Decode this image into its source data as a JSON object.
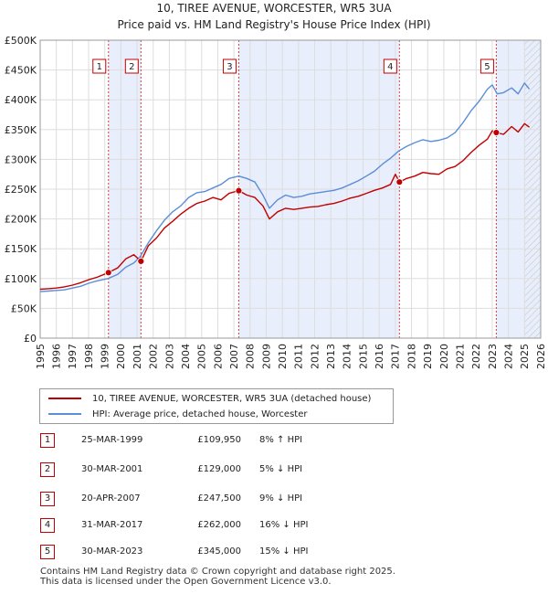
{
  "chart_data": {
    "type": "line",
    "title": "10, TIREE AVENUE, WORCESTER, WR5 3UA",
    "subtitle": "Price paid vs. HM Land Registry's House Price Index (HPI)",
    "xlabel": "",
    "ylabel": "",
    "xlim": [
      1995,
      2026
    ],
    "ylim": [
      0,
      500000
    ],
    "grid": true,
    "y_ticks": [
      {
        "value": 0,
        "label": "£0"
      },
      {
        "value": 50000,
        "label": "£50K"
      },
      {
        "value": 100000,
        "label": "£100K"
      },
      {
        "value": 150000,
        "label": "£150K"
      },
      {
        "value": 200000,
        "label": "£200K"
      },
      {
        "value": 250000,
        "label": "£250K"
      },
      {
        "value": 300000,
        "label": "£300K"
      },
      {
        "value": 350000,
        "label": "£350K"
      },
      {
        "value": 400000,
        "label": "£400K"
      },
      {
        "value": 450000,
        "label": "£450K"
      },
      {
        "value": 500000,
        "label": "£500K"
      }
    ],
    "x_ticks": [
      "1995",
      "1996",
      "1997",
      "1998",
      "1999",
      "2000",
      "2001",
      "2002",
      "2003",
      "2004",
      "2005",
      "2006",
      "2007",
      "2008",
      "2009",
      "2010",
      "2011",
      "2012",
      "2013",
      "2014",
      "2015",
      "2016",
      "2017",
      "2018",
      "2019",
      "2020",
      "2021",
      "2022",
      "2023",
      "2024",
      "2025",
      "2026"
    ],
    "series": [
      {
        "name": "10, TIREE AVENUE, WORCESTER, WR5 3UA (detached house)",
        "color": "#c00000",
        "x": [
          1995.0,
          1995.5,
          1996.0,
          1996.5,
          1997.0,
          1997.5,
          1998.0,
          1998.5,
          1999.23,
          1999.8,
          2000.3,
          2000.8,
          2001.24,
          2001.7,
          2002.2,
          2002.7,
          2003.2,
          2003.7,
          2004.2,
          2004.7,
          2005.2,
          2005.7,
          2006.2,
          2006.7,
          2007.3,
          2007.8,
          2008.3,
          2008.8,
          2009.2,
          2009.7,
          2010.2,
          2010.7,
          2011.2,
          2011.7,
          2012.2,
          2012.7,
          2013.2,
          2013.7,
          2014.2,
          2014.7,
          2015.2,
          2015.7,
          2016.2,
          2016.7,
          2017.0,
          2017.25,
          2017.7,
          2018.2,
          2018.7,
          2019.2,
          2019.7,
          2020.2,
          2020.7,
          2021.2,
          2021.7,
          2022.2,
          2022.7,
          2023.0,
          2023.25,
          2023.7,
          2024.2,
          2024.6,
          2025.0,
          2025.3
        ],
        "y": [
          82000,
          83000,
          84000,
          86000,
          89000,
          93000,
          98000,
          102000,
          109950,
          118000,
          133000,
          140000,
          129000,
          155000,
          168000,
          185000,
          196000,
          208000,
          218000,
          226000,
          230000,
          236000,
          232000,
          243000,
          247500,
          240000,
          236000,
          222000,
          200000,
          212000,
          218000,
          216000,
          218000,
          220000,
          221000,
          224000,
          226000,
          230000,
          235000,
          238000,
          243000,
          248000,
          252000,
          258000,
          275000,
          262000,
          268000,
          272000,
          278000,
          276000,
          275000,
          284000,
          288000,
          298000,
          312000,
          324000,
          334000,
          348000,
          345000,
          342000,
          355000,
          346000,
          360000,
          354000
        ]
      },
      {
        "name": "HPI: Average price, detached house, Worcester",
        "color": "#5b8ed6",
        "x": [
          1995.0,
          1995.5,
          1996.0,
          1996.5,
          1997.0,
          1997.5,
          1998.0,
          1998.5,
          1999.2,
          1999.8,
          2000.3,
          2000.8,
          2001.2,
          2001.7,
          2002.2,
          2002.7,
          2003.2,
          2003.7,
          2004.2,
          2004.7,
          2005.2,
          2005.7,
          2006.2,
          2006.7,
          2007.3,
          2007.8,
          2008.3,
          2008.8,
          2009.2,
          2009.7,
          2010.2,
          2010.7,
          2011.2,
          2011.7,
          2012.2,
          2012.7,
          2013.2,
          2013.7,
          2014.2,
          2014.7,
          2015.2,
          2015.7,
          2016.2,
          2016.7,
          2017.2,
          2017.7,
          2018.2,
          2018.7,
          2019.2,
          2019.7,
          2020.2,
          2020.7,
          2021.2,
          2021.7,
          2022.2,
          2022.7,
          2023.0,
          2023.3,
          2023.7,
          2024.2,
          2024.6,
          2025.0,
          2025.3
        ],
        "y": [
          78000,
          79000,
          80000,
          81000,
          84000,
          87000,
          92000,
          96000,
          100000,
          107000,
          119000,
          126000,
          137000,
          160000,
          180000,
          198000,
          212000,
          222000,
          236000,
          244000,
          246000,
          252000,
          258000,
          268000,
          272000,
          268000,
          262000,
          240000,
          218000,
          232000,
          240000,
          236000,
          238000,
          242000,
          244000,
          246000,
          248000,
          252000,
          258000,
          264000,
          272000,
          280000,
          292000,
          302000,
          314000,
          322000,
          328000,
          333000,
          330000,
          332000,
          336000,
          345000,
          362000,
          382000,
          398000,
          418000,
          425000,
          410000,
          412000,
          420000,
          410000,
          428000,
          418000
        ]
      }
    ],
    "sales": [
      {
        "num": "1",
        "x": 1999.23,
        "y": 109950
      },
      {
        "num": "2",
        "x": 2001.24,
        "y": 129000
      },
      {
        "num": "3",
        "x": 2007.3,
        "y": 247500
      },
      {
        "num": "4",
        "x": 2017.25,
        "y": 262000
      },
      {
        "num": "5",
        "x": 2023.25,
        "y": 345000
      }
    ],
    "shaded_periods": [
      [
        1999.23,
        2001.24
      ],
      [
        2007.3,
        2017.25
      ],
      [
        2023.25,
        2026
      ]
    ],
    "hatch_region": [
      2025.0,
      2026.0
    ]
  },
  "legend": {
    "items": [
      {
        "label": "10, TIREE AVENUE, WORCESTER, WR5 3UA (detached house)",
        "color": "#c00000"
      },
      {
        "label": "HPI: Average price, detached house, Worcester",
        "color": "#5b8ed6"
      }
    ]
  },
  "transactions": [
    {
      "num": "1",
      "date": "25-MAR-1999",
      "price": "£109,950",
      "hpi": "8% ↑ HPI"
    },
    {
      "num": "2",
      "date": "30-MAR-2001",
      "price": "£129,000",
      "hpi": "5% ↓ HPI"
    },
    {
      "num": "3",
      "date": "20-APR-2007",
      "price": "£247,500",
      "hpi": "9% ↓ HPI"
    },
    {
      "num": "4",
      "date": "31-MAR-2017",
      "price": "£262,000",
      "hpi": "16% ↓ HPI"
    },
    {
      "num": "5",
      "date": "30-MAR-2023",
      "price": "£345,000",
      "hpi": "15% ↓ HPI"
    }
  ],
  "footer": {
    "line1": "Contains HM Land Registry data © Crown copyright and database right 2025.",
    "line2": "This data is licensed under the Open Government Licence v3.0."
  }
}
